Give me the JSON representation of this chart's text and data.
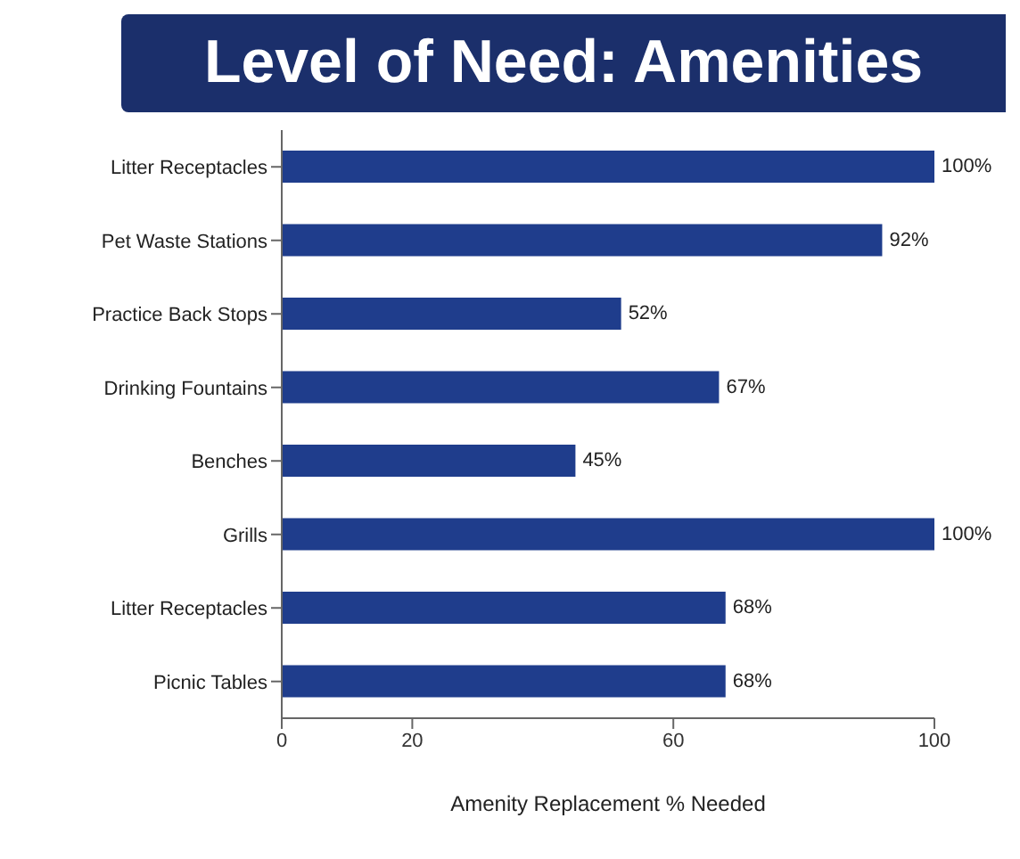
{
  "chart_data": {
    "type": "bar",
    "orientation": "horizontal",
    "title": "Level of Need: Amenities",
    "categories": [
      "Litter Receptacles",
      "Pet Waste Stations",
      "Practice Back Stops",
      "Drinking Fountains",
      "Benches",
      "Grills",
      "Litter Receptacles",
      "Picnic Tables"
    ],
    "values": [
      100,
      92,
      52,
      67,
      45,
      100,
      68,
      68
    ],
    "value_labels": [
      "100%",
      "92%",
      "52%",
      "67%",
      "45%",
      "100%",
      "68%",
      "68%"
    ],
    "color": "#1f3d8c",
    "xlabel": "Amenity Replacement % Needed",
    "xlim": [
      0,
      100
    ],
    "xticks": [
      0,
      20,
      60,
      100
    ],
    "grid": false
  }
}
